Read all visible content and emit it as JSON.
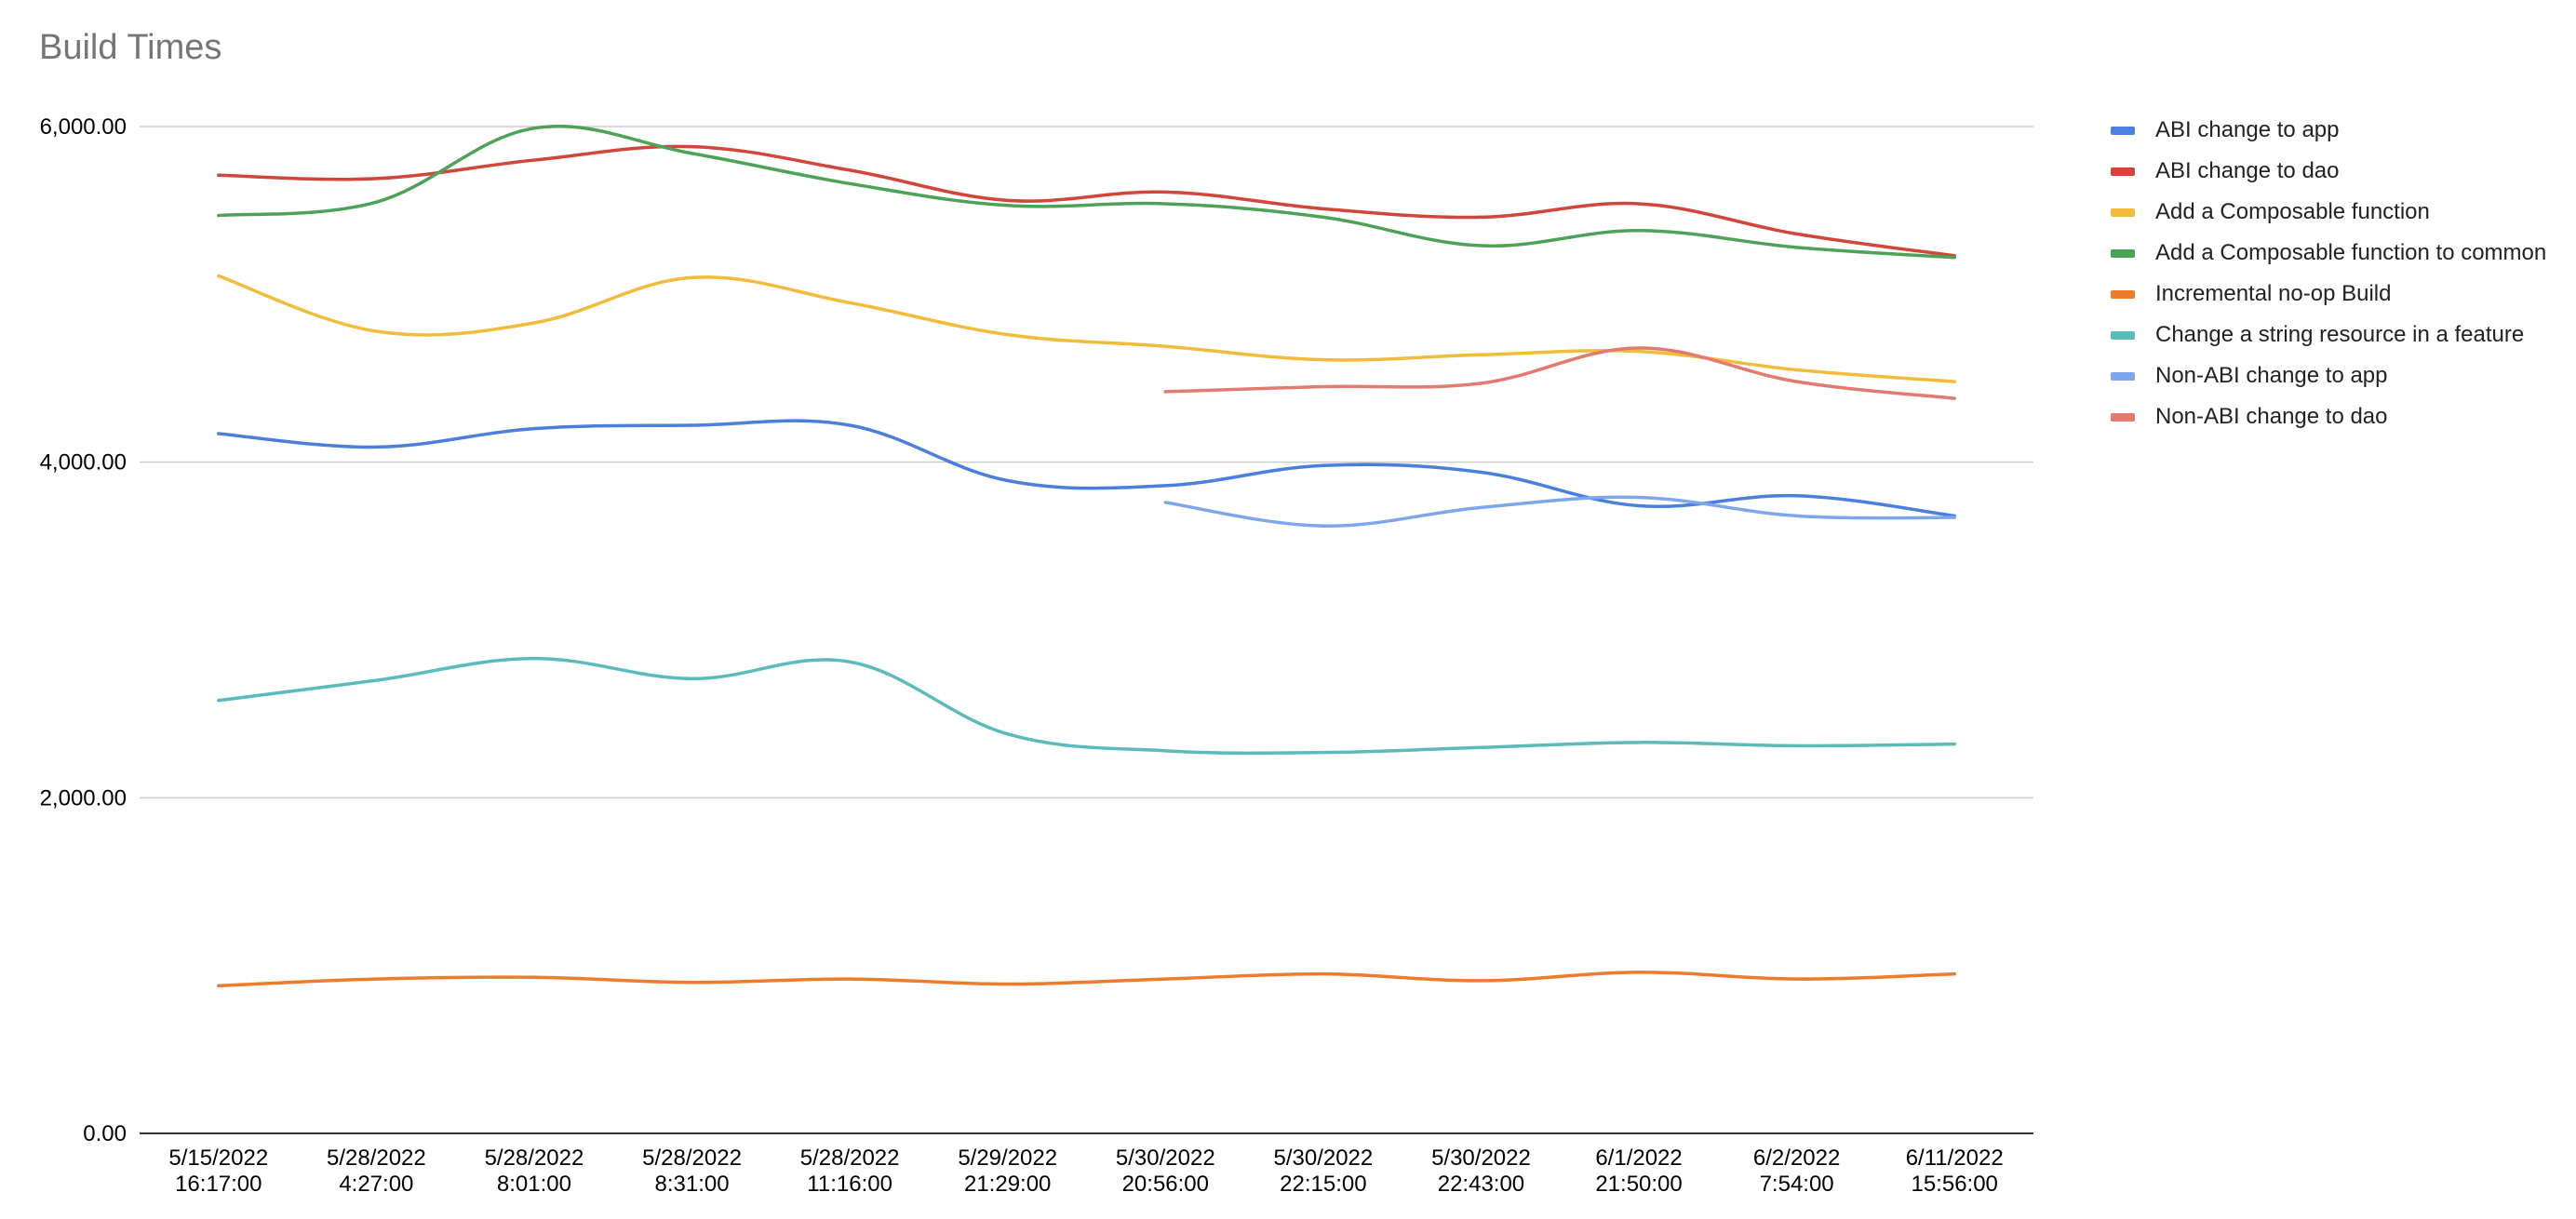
{
  "chart_data": {
    "type": "line",
    "title": "Build Times",
    "xlabel": "",
    "ylabel": "",
    "ylim": [
      0,
      6000
    ],
    "yticks": [
      "0.00",
      "2,000.00",
      "4,000.00",
      "6,000.00"
    ],
    "y_tick_values": [
      0,
      2000,
      4000,
      6000
    ],
    "grid": true,
    "legend_position": "right",
    "categories": [
      [
        "5/15/2022",
        "16:17:00"
      ],
      [
        "5/28/2022",
        "4:27:00"
      ],
      [
        "5/28/2022",
        "8:01:00"
      ],
      [
        "5/28/2022",
        "8:31:00"
      ],
      [
        "5/28/2022",
        "11:16:00"
      ],
      [
        "5/29/2022",
        "21:29:00"
      ],
      [
        "5/30/2022",
        "20:56:00"
      ],
      [
        "5/30/2022",
        "22:15:00"
      ],
      [
        "5/30/2022",
        "22:43:00"
      ],
      [
        "6/1/2022",
        "21:50:00"
      ],
      [
        "6/2/2022",
        "7:54:00"
      ],
      [
        "6/11/2022",
        "15:56:00"
      ]
    ],
    "series": [
      {
        "name": "ABI change to app",
        "color": "#4a7fde",
        "values": [
          4170,
          4090,
          4200,
          4220,
          4220,
          3890,
          3860,
          3980,
          3940,
          3740,
          3800,
          3680
        ]
      },
      {
        "name": "ABI change to dao",
        "color": "#d2453a",
        "values": [
          5710,
          5690,
          5800,
          5880,
          5740,
          5560,
          5610,
          5510,
          5460,
          5540,
          5360,
          5230
        ]
      },
      {
        "name": "Add a Composable function",
        "color": "#f1bb3c",
        "values": [
          5110,
          4780,
          4830,
          5100,
          4950,
          4760,
          4690,
          4610,
          4640,
          4660,
          4550,
          4480
        ]
      },
      {
        "name": "Add a Composable function to common",
        "color": "#4da258",
        "values": [
          5470,
          5550,
          5990,
          5840,
          5660,
          5530,
          5540,
          5460,
          5290,
          5380,
          5280,
          5220
        ]
      },
      {
        "name": "Incremental no-op Build",
        "color": "#ee7a2b",
        "values": [
          880,
          920,
          930,
          900,
          920,
          890,
          920,
          950,
          910,
          960,
          920,
          950
        ]
      },
      {
        "name": "Change a string resource in a feature",
        "color": "#5bbbbb",
        "values": [
          2580,
          2700,
          2830,
          2710,
          2810,
          2380,
          2280,
          2270,
          2300,
          2330,
          2310,
          2320
        ]
      },
      {
        "name": "Non-ABI change to app",
        "color": "#7ea6ec",
        "values": [
          null,
          null,
          null,
          null,
          null,
          null,
          3760,
          3620,
          3730,
          3790,
          3680,
          3670
        ]
      },
      {
        "name": "Non-ABI change to dao",
        "color": "#e27a70",
        "values": [
          null,
          null,
          null,
          null,
          null,
          null,
          4420,
          4450,
          4470,
          4680,
          4480,
          4380
        ]
      }
    ]
  }
}
